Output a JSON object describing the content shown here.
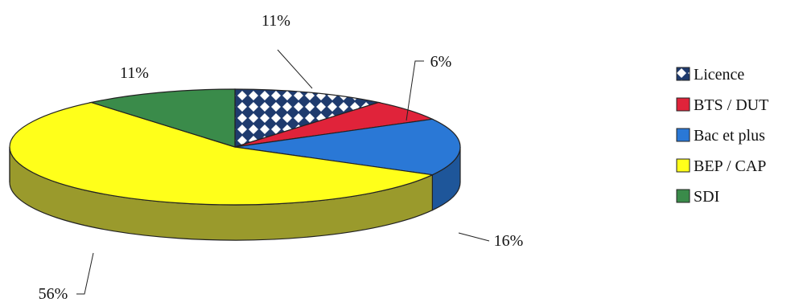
{
  "chart_data": {
    "type": "pie",
    "style": "3d",
    "title": "",
    "legend_position": "right",
    "slices": [
      {
        "label": "Licence",
        "value": 11,
        "display": "11%",
        "color": "#1f3b6e",
        "pattern": "checker"
      },
      {
        "label": "BTS / DUT",
        "value": 6,
        "display": "6%",
        "color": "#e0233a"
      },
      {
        "label": "Bac et plus",
        "value": 16,
        "display": "16%",
        "color": "#2a78d6"
      },
      {
        "label": "BEP / CAP",
        "value": 56,
        "display": "56%",
        "color": "#ffff1a"
      },
      {
        "label": "SDI",
        "value": 11,
        "display": "11%",
        "color": "#3a8b4a"
      }
    ]
  }
}
